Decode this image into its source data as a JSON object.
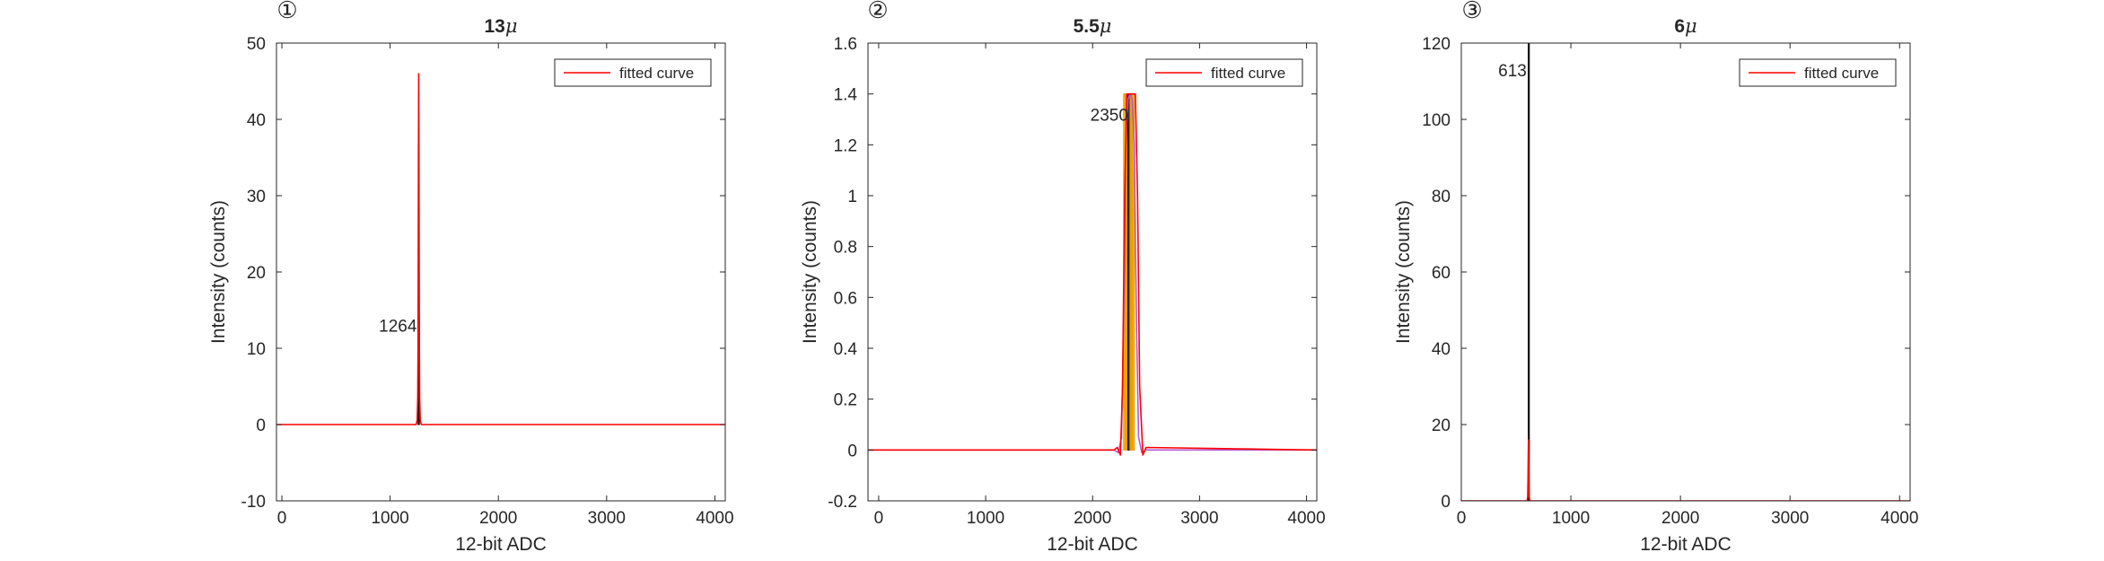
{
  "chart_data": [
    {
      "type": "line",
      "panel_marker": "①",
      "title": "13",
      "title_symbol": "μ",
      "xlabel": "12-bit ADC",
      "ylabel": "Intensity (counts)",
      "xlim": [
        -50,
        4096
      ],
      "ylim": [
        -10,
        50
      ],
      "xticks": [
        0,
        1000,
        2000,
        3000,
        4000
      ],
      "xtick_labels": [
        "0",
        "1000",
        "2000",
        "3000",
        "4000"
      ],
      "yticks": [
        -10,
        0,
        10,
        20,
        30,
        40,
        50
      ],
      "ytick_labels": [
        "-10",
        "0",
        "10",
        "20",
        "30",
        "40",
        "50"
      ],
      "grid": false,
      "legend_position": "top-right",
      "legend_entries": [
        "fitted curve"
      ],
      "series": [
        {
          "name": "fitted curve",
          "color": "#ff0000",
          "x": [
            -50,
            1240,
            1250,
            1255,
            1258,
            1260,
            1262,
            1264,
            1266,
            1268,
            1270,
            1273,
            1278,
            1288,
            4096
          ],
          "y": [
            0,
            0,
            0.6,
            3.5,
            10,
            22,
            36,
            46,
            36,
            22,
            10,
            3.5,
            0.6,
            0,
            0
          ]
        }
      ],
      "histogram": [
        {
          "x0": 1258,
          "x1": 1270,
          "y": 14,
          "color": "#3a3a3a",
          "stroke": "#000000"
        }
      ],
      "annotations": [
        {
          "text": "1264",
          "x": 1264,
          "y": 13,
          "align": "end"
        }
      ]
    },
    {
      "type": "line",
      "panel_marker": "②",
      "title": "5.5",
      "title_symbol": "μ",
      "xlabel": "12-bit ADC",
      "ylabel": "Intensity (counts)",
      "xlim": [
        -100,
        4096
      ],
      "ylim": [
        -0.2,
        1.6
      ],
      "xticks": [
        0,
        1000,
        2000,
        3000,
        4000
      ],
      "xtick_labels": [
        "0",
        "1000",
        "2000",
        "3000",
        "4000"
      ],
      "yticks": [
        -0.2,
        0,
        0.2,
        0.4,
        0.6,
        0.8,
        1,
        1.2,
        1.4,
        1.6
      ],
      "ytick_labels": [
        "-0.2",
        "0",
        "0.2",
        "0.4",
        "0.6",
        "0.8",
        "1",
        "1.2",
        "1.4",
        "1.6"
      ],
      "grid": false,
      "legend_position": "top-right",
      "legend_entries": [
        "fitted curve"
      ],
      "series": [
        {
          "name": "fitted curve",
          "color": "#ff0000",
          "x": [
            -100,
            2200,
            2230,
            2260,
            2280,
            2300,
            2320,
            2340,
            2360,
            2380,
            2400,
            2420,
            2440,
            2470,
            2500,
            4096
          ],
          "y": [
            0,
            0,
            0.01,
            -0.02,
            0.25,
            1.0,
            1.4,
            1.4,
            1.4,
            1.4,
            1.4,
            1.0,
            0.25,
            -0.02,
            0.01,
            0
          ]
        },
        {
          "name": "",
          "color": "#b45ad6",
          "x": [
            -100,
            2200,
            2240,
            2270,
            2290,
            2310,
            2330,
            2350,
            2370,
            2390,
            2410,
            2430,
            2460,
            2500,
            4096
          ],
          "y": [
            0,
            0,
            -0.01,
            0.05,
            0.5,
            1.2,
            1.38,
            1.4,
            1.38,
            1.2,
            0.5,
            0.05,
            -0.01,
            0,
            0
          ]
        }
      ],
      "histogram": [
        {
          "x0": 2290,
          "x1": 2310,
          "y": 1.4,
          "color": "#ffb000",
          "stroke": "#e39a00"
        },
        {
          "x0": 2310,
          "x1": 2330,
          "y": 1.4,
          "color": "#f5a300",
          "stroke": "#e39a00"
        },
        {
          "x0": 2330,
          "x1": 2350,
          "y": 1.4,
          "color": "#3a3a3a",
          "stroke": "#000000"
        },
        {
          "x0": 2350,
          "x1": 2370,
          "y": 1.4,
          "color": "#f5a300",
          "stroke": "#e39a00"
        },
        {
          "x0": 2370,
          "x1": 2390,
          "y": 1.4,
          "color": "#ffb000",
          "stroke": "#e39a00"
        }
      ],
      "annotations": [
        {
          "text": "2350",
          "x": 2350,
          "y": 1.32,
          "align": "end"
        }
      ]
    },
    {
      "type": "line",
      "panel_marker": "③",
      "title": "6",
      "title_symbol": "μ",
      "xlabel": "12-bit ADC",
      "ylabel": "Intensity (counts)",
      "xlim": [
        0,
        4096
      ],
      "ylim": [
        0,
        120
      ],
      "xticks": [
        0,
        1000,
        2000,
        3000,
        4000
      ],
      "xtick_labels": [
        "0",
        "1000",
        "2000",
        "3000",
        "4000"
      ],
      "yticks": [
        0,
        20,
        40,
        60,
        80,
        100,
        120
      ],
      "ytick_labels": [
        "0",
        "20",
        "40",
        "60",
        "80",
        "100",
        "120"
      ],
      "grid": false,
      "legend_position": "top-right",
      "legend_entries": [
        "fitted curve"
      ],
      "series": [
        {
          "name": "fitted curve",
          "color": "#ff0000",
          "x": [
            0,
            600,
            606,
            609,
            611,
            613,
            615,
            617,
            620,
            626,
            4096
          ],
          "y": [
            0,
            0,
            1,
            6,
            12,
            16,
            12,
            6,
            1,
            0,
            0
          ]
        }
      ],
      "histogram": [
        {
          "x0": 611,
          "x1": 615,
          "y": 120,
          "color": "#3a3a3a",
          "stroke": "#000000"
        }
      ],
      "annotations": [
        {
          "text": "613",
          "x": 613,
          "y": 113,
          "align": "end"
        }
      ]
    }
  ]
}
